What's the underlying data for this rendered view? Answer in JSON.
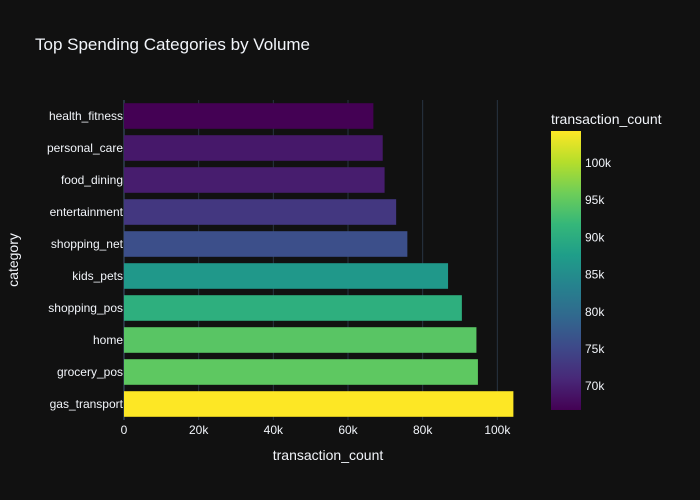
{
  "chart_data": {
    "type": "bar",
    "orientation": "horizontal",
    "title": "Top Spending Categories by Volume",
    "xlabel": "transaction_count",
    "ylabel": "category",
    "xlim": [
      0,
      105000
    ],
    "x_ticks": [
      0,
      20000,
      40000,
      60000,
      80000,
      100000
    ],
    "x_tick_labels": [
      "0",
      "20k",
      "40k",
      "60k",
      "80k",
      "100k"
    ],
    "grid": true,
    "categories": [
      "gas_transport",
      "grocery_pos",
      "home",
      "shopping_pos",
      "kids_pets",
      "shopping_net",
      "entertainment",
      "food_dining",
      "personal_care",
      "health_fitness"
    ],
    "values": [
      104300,
      94800,
      94400,
      90500,
      86800,
      75900,
      72900,
      69800,
      69300,
      66800
    ],
    "colorbar": {
      "title": "transaction_count",
      "min": 66800,
      "max": 104300,
      "ticks": [
        70000,
        75000,
        80000,
        85000,
        90000,
        95000,
        100000
      ],
      "tick_labels": [
        "70k",
        "75k",
        "80k",
        "85k",
        "90k",
        "95k",
        "100k"
      ],
      "colorscale": [
        "#440154",
        "#482878",
        "#3e4989",
        "#31688e",
        "#26828e",
        "#1f9e89",
        "#35b779",
        "#6ece58",
        "#b5de2b",
        "#fde725"
      ]
    },
    "background": "#111111"
  }
}
